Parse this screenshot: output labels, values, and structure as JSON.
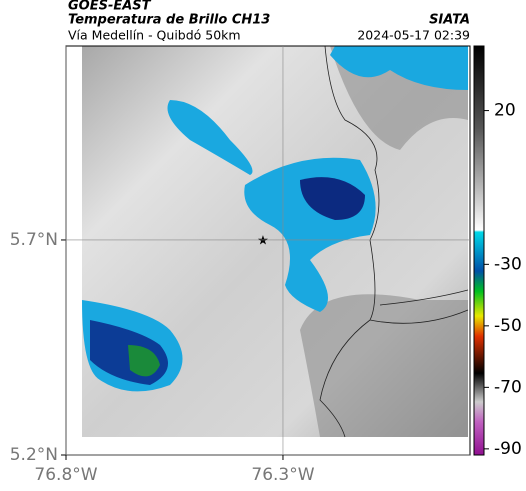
{
  "header": {
    "title": "GOES-EAST",
    "subtitle": "Temperatura de Brillo CH13",
    "route": "Vía Medellín - Quibdó 50km",
    "source": "SIATA",
    "timestamp": "2024-05-17 02:39"
  },
  "map": {
    "latlim": [
      5.2,
      6.151
    ],
    "lonlim": [
      -76.8,
      -75.869
    ],
    "latticks": [
      {
        "value": 5.2,
        "label": "5.2°N"
      },
      {
        "value": 5.7,
        "label": "5.7°N"
      }
    ],
    "lonticks": [
      {
        "value": -76.8,
        "label": "76.8°W"
      },
      {
        "value": -76.3,
        "label": "76.3°W"
      }
    ]
  },
  "colorbar": {
    "lim": [
      -92,
      41
    ],
    "ticks": [
      20,
      -30,
      -50,
      -70,
      -90
    ]
  }
}
